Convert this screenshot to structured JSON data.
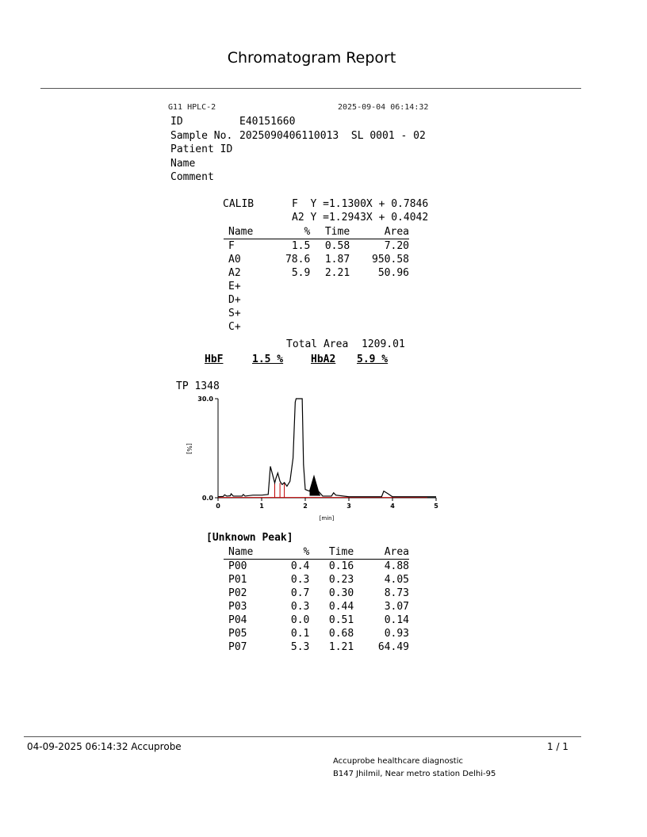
{
  "title": "Chromatogram Report",
  "header": {
    "instrument": "G11 HPLC-2",
    "datetime": "2025-09-04 06:14:32",
    "fields": [
      {
        "label": "ID",
        "value": "E40151660"
      },
      {
        "label": "Sample No.",
        "value": "2025090406110013  SL 0001 - 02"
      },
      {
        "label": "Patient ID",
        "value": ""
      },
      {
        "label": "Name",
        "value": ""
      },
      {
        "label": "Comment",
        "value": ""
      }
    ]
  },
  "calib": {
    "label": "CALIB",
    "lines": [
      "F  Y =1.1300X + 0.7846",
      "A2 Y =1.2943X + 0.4042"
    ]
  },
  "results": {
    "columns": [
      "Name",
      "%",
      "Time",
      "Area"
    ],
    "rows": [
      [
        "F",
        "1.5",
        "0.58",
        "7.20"
      ],
      [
        "A0",
        "78.6",
        "1.87",
        "950.58"
      ],
      [
        "A2",
        "5.9",
        "2.21",
        "50.96"
      ],
      [
        "E+",
        "",
        "",
        ""
      ],
      [
        "D+",
        "",
        "",
        ""
      ],
      [
        "S+",
        "",
        "",
        ""
      ],
      [
        "C+",
        "",
        "",
        ""
      ]
    ],
    "total_label": "Total Area",
    "total_value": "1209.01"
  },
  "summary": {
    "hbf_label": "HbF",
    "hbf_value": "1.5 %",
    "hba2_label": "HbA2",
    "hba2_value": "5.9 %"
  },
  "chart_data": {
    "type": "line",
    "title": "TP  1348",
    "xlabel": "[min]",
    "ylabel": "[%]",
    "xlim": [
      0,
      5
    ],
    "ylim": [
      0,
      30
    ],
    "xticks": [
      "0",
      "1",
      "2",
      "3",
      "4",
      "5"
    ],
    "yticks": [
      "0.0",
      "30.0"
    ],
    "trace_color": "#000000",
    "baseline_color": "#c00000",
    "trace": [
      [
        0,
        0.3
      ],
      [
        0.12,
        0.4
      ],
      [
        0.15,
        0.9
      ],
      [
        0.2,
        0.5
      ],
      [
        0.28,
        0.6
      ],
      [
        0.3,
        1.2
      ],
      [
        0.35,
        0.5
      ],
      [
        0.55,
        0.5
      ],
      [
        0.58,
        1.0
      ],
      [
        0.62,
        0.5
      ],
      [
        0.8,
        0.8
      ],
      [
        1.0,
        0.8
      ],
      [
        1.15,
        1.0
      ],
      [
        1.2,
        9.5
      ],
      [
        1.25,
        7
      ],
      [
        1.3,
        4.5
      ],
      [
        1.33,
        6
      ],
      [
        1.37,
        7.5
      ],
      [
        1.42,
        5
      ],
      [
        1.47,
        4
      ],
      [
        1.52,
        4.6
      ],
      [
        1.58,
        3.5
      ],
      [
        1.65,
        5
      ],
      [
        1.72,
        12
      ],
      [
        1.77,
        29
      ],
      [
        1.79,
        30
      ],
      [
        1.93,
        30
      ],
      [
        1.96,
        10
      ],
      [
        2.0,
        2.5
      ],
      [
        2.1,
        2
      ],
      [
        2.2,
        6.5
      ],
      [
        2.3,
        2
      ],
      [
        2.4,
        0.5
      ],
      [
        2.6,
        0.5
      ],
      [
        2.65,
        1.5
      ],
      [
        2.7,
        0.8
      ],
      [
        3.0,
        0.3
      ],
      [
        3.75,
        0.3
      ],
      [
        3.8,
        2
      ],
      [
        3.9,
        1.2
      ],
      [
        4.0,
        0.3
      ],
      [
        4.9,
        0.3
      ],
      [
        5.0,
        0.3
      ]
    ],
    "filled_peak": {
      "name": "A2",
      "time_range": [
        2.1,
        2.35
      ]
    }
  },
  "unknown": {
    "title": "[Unknown Peak]",
    "columns": [
      "Name",
      "%",
      "Time",
      "Area"
    ],
    "rows": [
      [
        "P00",
        "0.4",
        "0.16",
        "4.88"
      ],
      [
        "P01",
        "0.3",
        "0.23",
        "4.05"
      ],
      [
        "P02",
        "0.7",
        "0.30",
        "8.73"
      ],
      [
        "P03",
        "0.3",
        "0.44",
        "3.07"
      ],
      [
        "P04",
        "0.0",
        "0.51",
        "0.14"
      ],
      [
        "P05",
        "0.1",
        "0.68",
        "0.93"
      ],
      [
        "P07",
        "5.3",
        "1.21",
        "64.49"
      ]
    ]
  },
  "footer": {
    "left": "04-09-2025 06:14:32  Accuprobe",
    "page": "1 / 1",
    "org": "Accuprobe healthcare diagnostic",
    "address": "B147 Jhilmil, Near metro station Delhi-95"
  }
}
